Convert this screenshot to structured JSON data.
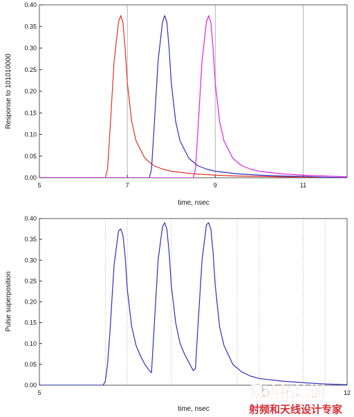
{
  "charts": [
    {
      "type": "line",
      "xlabel": "time, nsec",
      "ylabel": "Response to 101010000",
      "xlim": [
        5,
        12
      ],
      "ylim": [
        0,
        0.4
      ],
      "xticks": [
        5,
        7,
        9,
        11
      ],
      "xtick_labels": [
        "5",
        "7",
        "9",
        "11"
      ],
      "yticks": [
        0,
        0.05,
        0.1,
        0.15,
        0.2,
        0.25,
        0.3,
        0.35,
        0.4
      ],
      "ytick_labels": [
        "0.00",
        "0.05",
        "0.10",
        "0.15",
        "0.20",
        "0.25",
        "0.30",
        "0.35",
        "0.40"
      ],
      "grid": "vertical dotted lines at 7, 9, 11 and minor x positions",
      "series": [
        {
          "color": "#e03020",
          "x": [
            5,
            6.5,
            6.55,
            6.6,
            6.7,
            6.8,
            6.85,
            6.9,
            6.95,
            7.0,
            7.1,
            7.2,
            7.4,
            7.6,
            7.8,
            8.0,
            8.5,
            9.0,
            9.5,
            10.0,
            11.0,
            12.0
          ],
          "y": [
            0,
            0,
            0.02,
            0.1,
            0.27,
            0.36,
            0.375,
            0.36,
            0.3,
            0.22,
            0.13,
            0.085,
            0.045,
            0.028,
            0.02,
            0.015,
            0.009,
            0.006,
            0.004,
            0.003,
            0.001,
            0.0
          ]
        },
        {
          "color": "#2d2db8",
          "x": [
            5,
            7.5,
            7.55,
            7.6,
            7.7,
            7.8,
            7.85,
            7.9,
            7.95,
            8.0,
            8.1,
            8.2,
            8.4,
            8.6,
            8.8,
            9.0,
            9.5,
            10.0,
            10.5,
            11.0,
            11.5,
            12.0
          ],
          "y": [
            0,
            0,
            0.02,
            0.1,
            0.27,
            0.36,
            0.375,
            0.36,
            0.3,
            0.22,
            0.13,
            0.085,
            0.045,
            0.028,
            0.02,
            0.015,
            0.009,
            0.006,
            0.004,
            0.003,
            0.001,
            0.0
          ]
        },
        {
          "color": "#e020e0",
          "x": [
            5,
            8.5,
            8.55,
            8.6,
            8.7,
            8.8,
            8.85,
            8.9,
            8.95,
            9.0,
            9.1,
            9.2,
            9.4,
            9.6,
            9.8,
            10.0,
            10.5,
            11.0,
            11.5,
            12.0
          ],
          "y": [
            0,
            0,
            0.02,
            0.1,
            0.27,
            0.36,
            0.375,
            0.36,
            0.3,
            0.22,
            0.13,
            0.085,
            0.045,
            0.028,
            0.02,
            0.015,
            0.009,
            0.006,
            0.004,
            0.002
          ]
        }
      ]
    },
    {
      "type": "line",
      "xlabel": "time, nsec",
      "ylabel": "Pulse superposition",
      "xlim": [
        5,
        12
      ],
      "ylim": [
        0,
        0.4
      ],
      "xticks": [
        5,
        12
      ],
      "xtick_labels": [
        "5",
        "12"
      ],
      "yticks": [
        0,
        0.05,
        0.1,
        0.15,
        0.2,
        0.25,
        0.3,
        0.35,
        0.4
      ],
      "ytick_labels": [
        "0.00",
        "0.05",
        "0.10",
        "0.15",
        "0.20",
        "0.25",
        "0.30",
        "0.35",
        "0.40"
      ],
      "grid": "vertical dotted lines at minor x positions",
      "series": [
        {
          "color": "#2d2db8",
          "x": [
            5,
            6.45,
            6.5,
            6.55,
            6.6,
            6.7,
            6.8,
            6.85,
            6.9,
            6.95,
            7.0,
            7.1,
            7.2,
            7.3,
            7.4,
            7.5,
            7.55,
            7.6,
            7.7,
            7.8,
            7.85,
            7.9,
            7.95,
            8.0,
            8.1,
            8.2,
            8.3,
            8.4,
            8.5,
            8.55,
            8.6,
            8.7,
            8.8,
            8.85,
            8.9,
            8.95,
            9.0,
            9.1,
            9.2,
            9.4,
            9.6,
            9.8,
            10.0,
            10.5,
            11.0,
            11.5,
            12.0
          ],
          "y": [
            0,
            0,
            0.01,
            0.05,
            0.12,
            0.29,
            0.37,
            0.375,
            0.36,
            0.31,
            0.23,
            0.14,
            0.095,
            0.07,
            0.05,
            0.035,
            0.03,
            0.12,
            0.3,
            0.38,
            0.39,
            0.375,
            0.32,
            0.24,
            0.15,
            0.1,
            0.075,
            0.055,
            0.035,
            0.04,
            0.13,
            0.3,
            0.385,
            0.39,
            0.375,
            0.32,
            0.24,
            0.14,
            0.095,
            0.05,
            0.032,
            0.022,
            0.016,
            0.01,
            0.006,
            0.003,
            0.001
          ]
        }
      ]
    }
  ],
  "watermark": {
    "main_text": "易迪拓培训",
    "sub_text": "射频和天线设计专家",
    "color_main": "#e8141c",
    "color_sub": "#d01820"
  }
}
